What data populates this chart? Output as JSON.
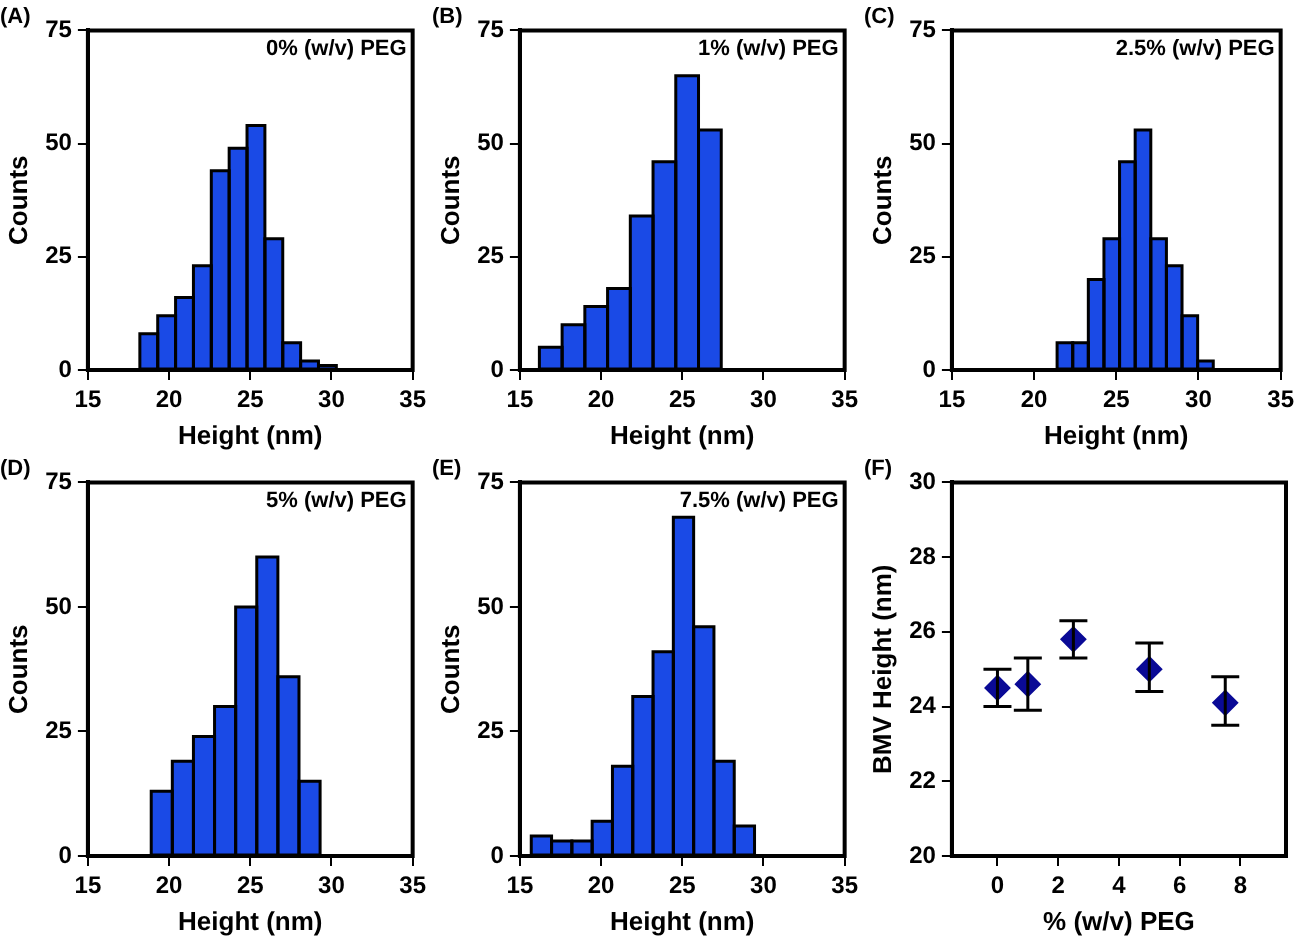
{
  "chart_data": [
    {
      "type": "histogram",
      "title": "(A)",
      "xlabel": "Height (nm)",
      "ylabel": "Counts",
      "annotations": [
        "0% (w/v) PEG"
      ],
      "color": "#1a4ae6",
      "bins": [
        18.2,
        19.3,
        20.4,
        21.5,
        22.6,
        23.7,
        24.8,
        25.9,
        27.0,
        28.1,
        29.2,
        30.3
      ],
      "values": [
        8,
        12,
        16,
        23,
        44,
        49,
        54,
        29,
        6,
        2,
        1
      ],
      "xlim": [
        15,
        35
      ],
      "xticks": [
        15,
        20,
        25,
        30,
        35
      ],
      "ylim": [
        0,
        75
      ],
      "yticks": [
        0,
        25,
        50,
        75
      ]
    },
    {
      "type": "histogram",
      "title": "(B)",
      "xlabel": "Height (nm)",
      "ylabel": "Counts",
      "annotations": [
        "1% (w/v) PEG"
      ],
      "color": "#1a4ae6",
      "bins": [
        16.2,
        17.6,
        19.0,
        20.4,
        21.8,
        23.2,
        24.6,
        26.0,
        27.4
      ],
      "values": [
        5,
        10,
        14,
        18,
        34,
        46,
        65,
        53
      ],
      "xlim": [
        15,
        35
      ],
      "xticks": [
        15,
        20,
        25,
        30,
        35
      ],
      "ylim": [
        0,
        75
      ],
      "yticks": [
        0,
        25,
        50,
        75
      ]
    },
    {
      "type": "histogram",
      "title": "(C)",
      "xlabel": "Height (nm)",
      "ylabel": "Counts",
      "annotations": [
        "2.5% (w/v) PEG"
      ],
      "color": "#1a4ae6",
      "bins": [
        21.4,
        22.35,
        23.3,
        24.25,
        25.2,
        26.15,
        27.1,
        28.05,
        29.0,
        29.95,
        30.9
      ],
      "values": [
        6,
        6,
        20,
        29,
        46,
        53,
        29,
        23,
        12,
        2
      ],
      "xlim": [
        15,
        35
      ],
      "xticks": [
        15,
        20,
        25,
        30,
        35
      ],
      "ylim": [
        0,
        75
      ],
      "yticks": [
        0,
        25,
        50,
        75
      ]
    },
    {
      "type": "histogram",
      "title": "(D)",
      "xlabel": "Height (nm)",
      "ylabel": "Counts",
      "annotations": [
        "5% (w/v) PEG"
      ],
      "color": "#1a4ae6",
      "bins": [
        18.9,
        20.2,
        21.5,
        22.8,
        24.1,
        25.4,
        26.7,
        28.0,
        29.3
      ],
      "values": [
        13,
        19,
        24,
        30,
        50,
        60,
        36,
        15
      ],
      "xlim": [
        15,
        35
      ],
      "xticks": [
        15,
        20,
        25,
        30,
        35
      ],
      "ylim": [
        0,
        75
      ],
      "yticks": [
        0,
        25,
        50,
        75
      ]
    },
    {
      "type": "histogram",
      "title": "(E)",
      "xlabel": "Height (nm)",
      "ylabel": "Counts",
      "annotations": [
        "7.5% (w/v) PEG"
      ],
      "color": "#1a4ae6",
      "bins": [
        15.7,
        16.95,
        18.2,
        19.45,
        20.7,
        21.95,
        23.2,
        24.45,
        25.7,
        26.95,
        28.2,
        29.45
      ],
      "values": [
        4,
        3,
        3,
        7,
        18,
        32,
        41,
        68,
        46,
        19,
        6
      ],
      "xlim": [
        15,
        35
      ],
      "xticks": [
        15,
        20,
        25,
        30,
        35
      ],
      "ylim": [
        0,
        75
      ],
      "yticks": [
        0,
        25,
        50,
        75
      ]
    },
    {
      "type": "scatter",
      "title": "(F)",
      "xlabel": "% (w/v) PEG",
      "ylabel": "BMV Height (nm)",
      "color": "#0a0a96",
      "marker": "diamond",
      "x": [
        0,
        1,
        2.5,
        5,
        7.5
      ],
      "values": [
        24.5,
        24.6,
        25.8,
        25.0,
        24.1
      ],
      "errors": [
        [
          24.0,
          25.0
        ],
        [
          23.9,
          25.3
        ],
        [
          25.3,
          26.3
        ],
        [
          24.4,
          25.7
        ],
        [
          23.5,
          24.8
        ]
      ],
      "xlim": [
        -1.5,
        9.5
      ],
      "xticks": [
        0,
        2,
        4,
        6,
        8
      ],
      "ylim": [
        20,
        30
      ],
      "yticks": [
        20,
        22,
        24,
        26,
        28,
        30
      ]
    }
  ]
}
